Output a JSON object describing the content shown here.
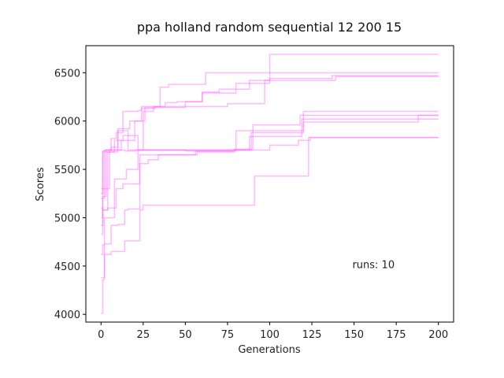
{
  "chart_data": {
    "type": "line",
    "title": "ppa holland random sequential 12 200 15",
    "xlabel": "Generations",
    "ylabel": "Scores",
    "xlim": [
      -9,
      209
    ],
    "ylim": [
      3920,
      6780
    ],
    "xticks": [
      0,
      25,
      50,
      75,
      100,
      125,
      150,
      175,
      200
    ],
    "yticks": [
      4000,
      4500,
      5000,
      5500,
      6000,
      6500
    ],
    "grid": false,
    "legend": "none",
    "annotation": {
      "text": "runs: 10",
      "x": 149,
      "y": 4480
    },
    "line_color": "#ff66ff",
    "series": [
      {
        "x": [
          0,
          1,
          3,
          6,
          9,
          13,
          22,
          24,
          50,
          75,
          97,
          100,
          200
        ],
        "y": [
          5000,
          5680,
          5700,
          5820,
          5880,
          6100,
          6110,
          6150,
          6150,
          6180,
          6420,
          6690,
          6690
        ]
      },
      {
        "x": [
          0,
          1,
          4,
          8,
          14,
          21,
          25,
          31,
          35,
          40,
          62,
          90,
          200
        ],
        "y": [
          5100,
          5080,
          5680,
          5700,
          5690,
          5700,
          6100,
          6150,
          6350,
          6380,
          6500,
          6500,
          6500
        ]
      },
      {
        "x": [
          0,
          1,
          3,
          10,
          17,
          24,
          32,
          38,
          45,
          60,
          80,
          100,
          137,
          200
        ],
        "y": [
          4920,
          5220,
          5680,
          5920,
          6000,
          6130,
          6150,
          6190,
          6200,
          6290,
          6390,
          6440,
          6470,
          6470
        ]
      },
      {
        "x": [
          0,
          2,
          5,
          12,
          20,
          26,
          35,
          50,
          60,
          70,
          88,
          139,
          200
        ],
        "y": [
          5200,
          5300,
          5700,
          5800,
          6000,
          6140,
          6140,
          6200,
          6300,
          6330,
          6420,
          6460,
          6460
        ]
      },
      {
        "x": [
          0,
          1,
          2,
          8,
          15,
          22,
          30,
          50,
          78,
          89,
          120,
          200
        ],
        "y": [
          4620,
          4720,
          5000,
          5400,
          5500,
          5700,
          5700,
          5690,
          5700,
          5880,
          6100,
          6100
        ]
      },
      {
        "x": [
          0,
          2,
          6,
          10,
          16,
          22,
          30,
          50,
          79,
          90,
          118,
          200
        ],
        "y": [
          5300,
          5700,
          5730,
          5900,
          5700,
          5700,
          5700,
          5700,
          5710,
          5960,
          6060,
          6060
        ]
      },
      {
        "x": [
          0,
          1,
          3,
          8,
          13,
          22,
          25,
          50,
          80,
          88,
          119,
          190,
          200
        ],
        "y": [
          5250,
          5690,
          5700,
          5800,
          5850,
          5700,
          5700,
          5700,
          5700,
          5840,
          6020,
          6020,
          6020
        ]
      },
      {
        "x": [
          0,
          1,
          4,
          9,
          13,
          18,
          23,
          25,
          54,
          56,
          80,
          120,
          188,
          200
        ],
        "y": [
          4830,
          5080,
          5100,
          5300,
          5350,
          5350,
          5650,
          5650,
          5650,
          5690,
          5900,
          5990,
          6060,
          6060
        ]
      },
      {
        "x": [
          0,
          1,
          2,
          6,
          10,
          14,
          16,
          22,
          23,
          28,
          34,
          57,
          79,
          100,
          117,
          124,
          200
        ],
        "y": [
          4010,
          4360,
          4730,
          4920,
          4930,
          5080,
          5090,
          5090,
          5560,
          5600,
          5650,
          5680,
          5700,
          5750,
          5800,
          5830,
          5830
        ]
      },
      {
        "x": [
          0,
          2,
          6,
          14,
          23,
          25,
          50,
          90,
          91,
          117,
          123,
          200
        ],
        "y": [
          4380,
          4620,
          4650,
          4760,
          5080,
          5130,
          5130,
          5130,
          5430,
          5430,
          5830,
          5830
        ]
      }
    ]
  }
}
